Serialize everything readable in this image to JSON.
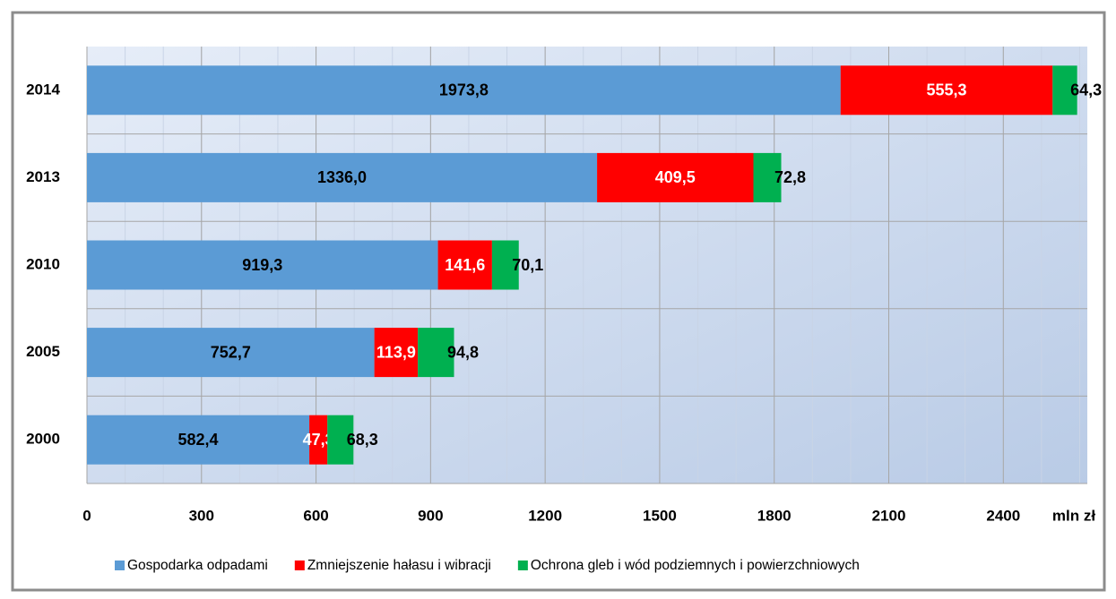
{
  "chart_data": {
    "type": "stacked-barh",
    "categories": [
      "2014",
      "2013",
      "2010",
      "2005",
      "2000"
    ],
    "series": [
      {
        "name": "Gospodarka odpadami",
        "color": "#5b9bd5",
        "label_color": "#000000",
        "values": [
          1973.8,
          1336.0,
          919.3,
          752.7,
          582.4
        ],
        "value_labels": [
          "1973,8",
          "1336,0",
          "919,3",
          "752,7",
          "582,4"
        ]
      },
      {
        "name": "Zmniejszenie hałasu i wibracji",
        "color": "#ff0000",
        "label_color": "#ffffff",
        "values": [
          555.3,
          409.5,
          141.6,
          113.9,
          47.3
        ],
        "value_labels": [
          "555,3",
          "409,5",
          "141,6",
          "113,9",
          "47,3"
        ]
      },
      {
        "name": "Ochrona gleb i wód podziemnych i powierzchniowych",
        "color": "#00b050",
        "label_color": "#000000",
        "values": [
          64.3,
          72.8,
          70.1,
          94.8,
          68.3
        ],
        "value_labels": [
          "64,3",
          "72,8",
          "70,1",
          "94,8",
          "68,3"
        ]
      }
    ],
    "x_label": "mln zł",
    "xlim": [
      0,
      2620
    ],
    "xticks": [
      0,
      300,
      600,
      900,
      1200,
      1500,
      1800,
      2100,
      2400
    ],
    "grid": true,
    "legend": "bottom"
  }
}
